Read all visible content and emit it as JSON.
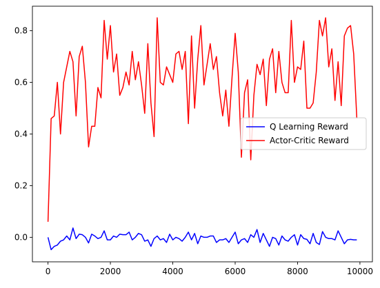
{
  "chart_data": {
    "type": "line",
    "title": "",
    "xlabel": "",
    "ylabel": "",
    "xlim": [
      -500,
      10400
    ],
    "ylim": [
      -0.095,
      0.895
    ],
    "xticks": [
      0,
      2000,
      4000,
      6000,
      8000,
      10000
    ],
    "xtick_labels": [
      "0",
      "2000",
      "4000",
      "6000",
      "8000",
      "10000"
    ],
    "yticks": [
      0.0,
      0.2,
      0.4,
      0.6,
      0.8
    ],
    "ytick_labels": [
      "0.0",
      "0.2",
      "0.4",
      "0.6",
      "0.8"
    ],
    "grid": false,
    "legend_position": "center-right",
    "x": [
      0,
      100,
      200,
      300,
      400,
      500,
      600,
      700,
      800,
      900,
      1000,
      1100,
      1200,
      1300,
      1400,
      1500,
      1600,
      1700,
      1800,
      1900,
      2000,
      2100,
      2200,
      2300,
      2400,
      2500,
      2600,
      2700,
      2800,
      2900,
      3000,
      3100,
      3200,
      3300,
      3400,
      3500,
      3600,
      3700,
      3800,
      3900,
      4000,
      4100,
      4200,
      4300,
      4400,
      4500,
      4600,
      4700,
      4800,
      4900,
      5000,
      5100,
      5200,
      5300,
      5400,
      5500,
      5600,
      5700,
      5800,
      5900,
      6000,
      6100,
      6200,
      6300,
      6400,
      6500,
      6600,
      6700,
      6800,
      6900,
      7000,
      7100,
      7200,
      7300,
      7400,
      7500,
      7600,
      7700,
      7800,
      7900,
      8000,
      8100,
      8200,
      8300,
      8400,
      8500,
      8600,
      8700,
      8800,
      8900,
      9000,
      9100,
      9200,
      9300,
      9400,
      9500,
      9600,
      9700,
      9800,
      9900
    ],
    "series": [
      {
        "name": "Q Learning Reward",
        "color": "#0000ff",
        "values": [
          0.0,
          -0.048,
          -0.035,
          -0.03,
          -0.015,
          -0.01,
          0.005,
          -0.01,
          0.036,
          -0.005,
          0.012,
          0.01,
          0.0,
          -0.022,
          0.012,
          0.005,
          -0.005,
          0.0,
          0.025,
          -0.01,
          -0.01,
          0.005,
          0.0,
          0.012,
          0.01,
          0.01,
          0.02,
          -0.01,
          0.0,
          0.015,
          0.01,
          -0.015,
          -0.01,
          -0.035,
          -0.005,
          0.005,
          -0.01,
          -0.005,
          -0.02,
          0.012,
          -0.01,
          0.0,
          -0.005,
          -0.015,
          0.0,
          0.02,
          -0.01,
          0.015,
          -0.025,
          0.005,
          0.0,
          0.0,
          0.005,
          0.005,
          -0.02,
          -0.01,
          -0.01,
          -0.005,
          -0.02,
          0.0,
          0.02,
          -0.025,
          -0.01,
          -0.005,
          -0.02,
          0.01,
          0.0,
          0.03,
          -0.02,
          0.015,
          -0.01,
          -0.035,
          0.0,
          -0.005,
          -0.03,
          0.005,
          -0.01,
          -0.015,
          0.0,
          0.01,
          -0.03,
          0.01,
          -0.005,
          -0.008,
          -0.025,
          0.015,
          -0.02,
          -0.028,
          0.022,
          0.0,
          -0.005,
          -0.005,
          -0.01,
          0.025,
          0.0,
          -0.025,
          -0.01,
          -0.008,
          -0.01,
          -0.01
        ]
      },
      {
        "name": "Actor-Critic Reward",
        "color": "#ff0000",
        "values": [
          0.06,
          0.46,
          0.47,
          0.6,
          0.4,
          0.6,
          0.66,
          0.72,
          0.68,
          0.47,
          0.7,
          0.74,
          0.6,
          0.35,
          0.43,
          0.43,
          0.58,
          0.54,
          0.84,
          0.69,
          0.82,
          0.64,
          0.71,
          0.55,
          0.58,
          0.64,
          0.59,
          0.72,
          0.61,
          0.68,
          0.59,
          0.48,
          0.75,
          0.52,
          0.39,
          0.85,
          0.6,
          0.59,
          0.66,
          0.63,
          0.6,
          0.71,
          0.72,
          0.65,
          0.72,
          0.44,
          0.78,
          0.5,
          0.69,
          0.82,
          0.59,
          0.67,
          0.75,
          0.65,
          0.7,
          0.56,
          0.47,
          0.57,
          0.43,
          0.62,
          0.79,
          0.64,
          0.31,
          0.56,
          0.61,
          0.3,
          0.55,
          0.67,
          0.63,
          0.69,
          0.51,
          0.69,
          0.73,
          0.56,
          0.72,
          0.6,
          0.56,
          0.56,
          0.84,
          0.6,
          0.66,
          0.65,
          0.76,
          0.5,
          0.5,
          0.52,
          0.64,
          0.84,
          0.78,
          0.85,
          0.66,
          0.73,
          0.53,
          0.68,
          0.51,
          0.78,
          0.81,
          0.82,
          0.71,
          0.46
        ]
      }
    ]
  }
}
